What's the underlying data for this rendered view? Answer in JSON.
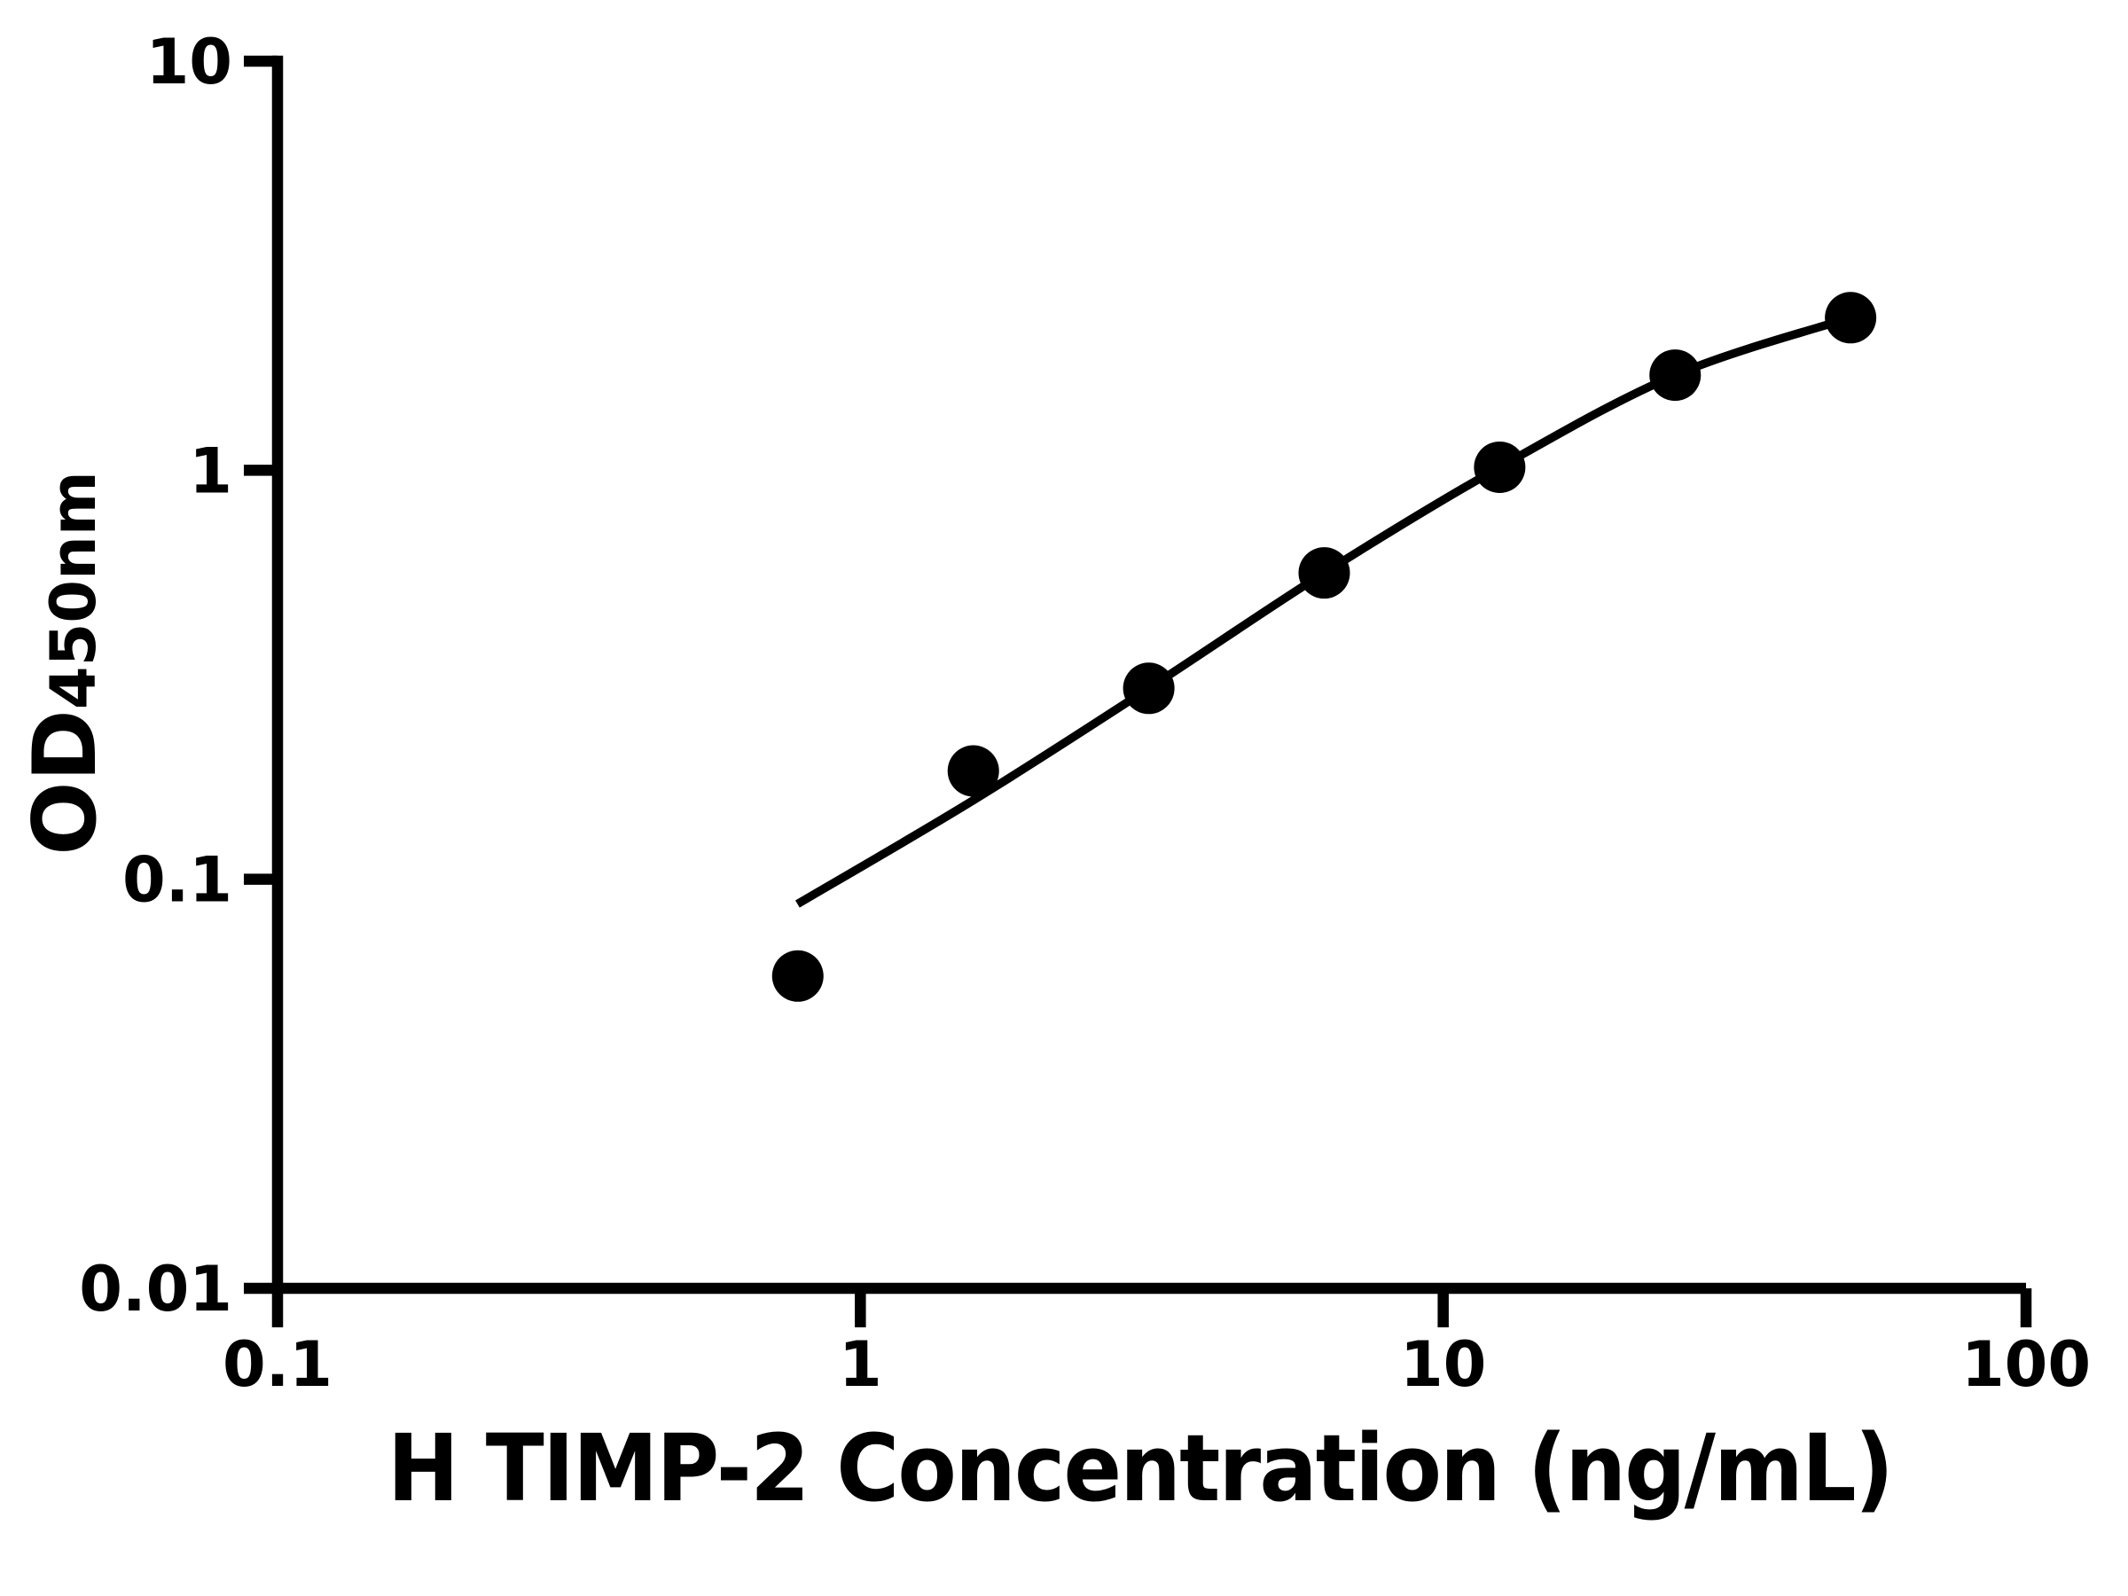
{
  "figure": {
    "background": "#ffffff",
    "foreground": "#000000"
  },
  "chart_data": {
    "type": "scatter",
    "title": "",
    "xlabel": "H TIMP-2 Concentration (ng/mL)",
    "ylabel": "OD450nm",
    "ylabel_main": "OD",
    "ylabel_sub": "450nm",
    "x_scale": "log10",
    "y_scale": "log10",
    "xlim": [
      0.1,
      100
    ],
    "ylim": [
      0.01,
      10
    ],
    "grid": false,
    "legend": "none",
    "x_ticks": [
      {
        "label": "0.1",
        "value": 0.1
      },
      {
        "label": "1",
        "value": 1
      },
      {
        "label": "10",
        "value": 10
      },
      {
        "label": "100",
        "value": 100
      }
    ],
    "y_ticks": [
      {
        "label": "10",
        "value": 10
      },
      {
        "label": "1",
        "value": 1
      },
      {
        "label": "0.1",
        "value": 0.1
      },
      {
        "label": "0.01",
        "value": 0.01
      }
    ],
    "series": [
      {
        "name": "standard-points",
        "marker": "filled-circle",
        "color": "#000000",
        "points": [
          {
            "x": 0.781,
            "y": 0.058
          },
          {
            "x": 1.5625,
            "y": 0.184
          },
          {
            "x": 3.125,
            "y": 0.293
          },
          {
            "x": 6.25,
            "y": 0.561
          },
          {
            "x": 12.5,
            "y": 1.017
          },
          {
            "x": 25,
            "y": 1.708
          },
          {
            "x": 50,
            "y": 2.36
          }
        ]
      }
    ],
    "fit_curve": {
      "name": "4pl-fit-curve",
      "color": "#000000",
      "points": [
        [
          0.78,
          0.087
        ],
        [
          1.5625,
          0.156
        ],
        [
          3.125,
          0.293
        ],
        [
          6.25,
          0.561
        ],
        [
          12.5,
          1.017
        ],
        [
          25,
          1.708
        ],
        [
          50,
          2.36
        ]
      ]
    }
  }
}
